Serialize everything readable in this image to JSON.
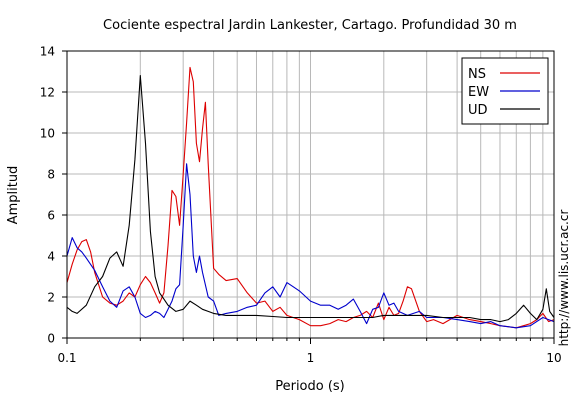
{
  "chart_data": {
    "type": "line",
    "title": "Cociente espectral Jardin Lankester, Cartago. Profundidad 30 m",
    "xlabel": "Periodo (s)",
    "ylabel": "Amplitud",
    "xscale": "log",
    "xlim": [
      0.1,
      10
    ],
    "ylim": [
      0,
      14
    ],
    "x_ticks": [
      0.1,
      1,
      10
    ],
    "x_tick_labels": [
      "0.1",
      "1",
      "10"
    ],
    "y_ticks": [
      0,
      2,
      4,
      6,
      8,
      10,
      12,
      14
    ],
    "y_tick_labels": [
      "0",
      "2",
      "4",
      "6",
      "8",
      "10",
      "12",
      "14"
    ],
    "grid": true,
    "legend_position": "top-right",
    "side_text": "http://www.lis.ucr.ac.cr",
    "series": [
      {
        "name": "NS",
        "color": "#dd0000",
        "x": [
          0.1,
          0.105,
          0.11,
          0.115,
          0.12,
          0.125,
          0.13,
          0.14,
          0.15,
          0.16,
          0.17,
          0.18,
          0.19,
          0.2,
          0.21,
          0.22,
          0.23,
          0.24,
          0.25,
          0.26,
          0.27,
          0.28,
          0.29,
          0.3,
          0.31,
          0.32,
          0.33,
          0.34,
          0.35,
          0.36,
          0.37,
          0.38,
          0.4,
          0.42,
          0.45,
          0.5,
          0.55,
          0.6,
          0.65,
          0.7,
          0.75,
          0.8,
          0.9,
          1.0,
          1.1,
          1.2,
          1.3,
          1.4,
          1.5,
          1.6,
          1.7,
          1.8,
          1.9,
          2.0,
          2.1,
          2.2,
          2.3,
          2.4,
          2.5,
          2.6,
          2.8,
          3.0,
          3.2,
          3.5,
          4.0,
          4.5,
          5.0,
          5.5,
          6.0,
          7.0,
          7.5,
          8.0,
          8.5,
          9.0,
          9.5,
          10.0
        ],
        "y": [
          2.7,
          3.6,
          4.3,
          4.7,
          4.8,
          4.2,
          3.2,
          2.0,
          1.7,
          1.6,
          1.8,
          2.2,
          2.0,
          2.6,
          3.0,
          2.7,
          2.2,
          1.7,
          2.2,
          4.5,
          7.2,
          6.9,
          5.5,
          8.0,
          10.5,
          13.2,
          12.5,
          9.5,
          8.6,
          10.2,
          11.5,
          8.5,
          3.4,
          3.1,
          2.8,
          2.9,
          2.2,
          1.7,
          1.8,
          1.3,
          1.5,
          1.1,
          0.9,
          0.6,
          0.6,
          0.7,
          0.9,
          0.8,
          1.0,
          1.1,
          1.3,
          1.0,
          1.7,
          0.9,
          1.5,
          1.1,
          1.2,
          1.8,
          2.5,
          2.4,
          1.3,
          0.8,
          0.9,
          0.7,
          1.1,
          0.9,
          0.8,
          0.7,
          0.6,
          0.5,
          0.6,
          0.7,
          0.9,
          1.2,
          0.8,
          0.9
        ]
      },
      {
        "name": "EW",
        "color": "#0000cc",
        "x": [
          0.1,
          0.105,
          0.11,
          0.115,
          0.12,
          0.13,
          0.14,
          0.15,
          0.16,
          0.17,
          0.18,
          0.19,
          0.2,
          0.21,
          0.22,
          0.23,
          0.24,
          0.25,
          0.26,
          0.27,
          0.28,
          0.29,
          0.3,
          0.31,
          0.32,
          0.33,
          0.34,
          0.35,
          0.36,
          0.38,
          0.4,
          0.42,
          0.45,
          0.5,
          0.55,
          0.6,
          0.65,
          0.7,
          0.75,
          0.8,
          0.85,
          0.9,
          1.0,
          1.1,
          1.2,
          1.3,
          1.4,
          1.5,
          1.6,
          1.7,
          1.8,
          1.9,
          2.0,
          2.1,
          2.2,
          2.3,
          2.5,
          2.8,
          3.0,
          3.5,
          4.0,
          4.5,
          5.0,
          5.5,
          6.0,
          7.0,
          8.0,
          9.0,
          9.5,
          10.0
        ],
        "y": [
          4.0,
          4.9,
          4.4,
          4.2,
          3.9,
          3.3,
          2.5,
          1.8,
          1.5,
          2.3,
          2.5,
          2.0,
          1.2,
          1.0,
          1.1,
          1.3,
          1.2,
          1.0,
          1.4,
          1.8,
          2.4,
          2.6,
          5.5,
          8.5,
          7.0,
          4.0,
          3.2,
          4.0,
          3.2,
          2.0,
          1.8,
          1.1,
          1.2,
          1.3,
          1.5,
          1.6,
          2.2,
          2.5,
          2.0,
          2.7,
          2.5,
          2.3,
          1.8,
          1.6,
          1.6,
          1.4,
          1.6,
          1.9,
          1.3,
          0.7,
          1.4,
          1.5,
          2.2,
          1.6,
          1.7,
          1.3,
          1.1,
          1.3,
          1.0,
          1.0,
          0.9,
          0.8,
          0.7,
          0.8,
          0.6,
          0.5,
          0.6,
          1.0,
          0.9,
          0.8
        ]
      },
      {
        "name": "UD",
        "color": "#000000",
        "x": [
          0.1,
          0.105,
          0.11,
          0.12,
          0.13,
          0.14,
          0.15,
          0.16,
          0.17,
          0.18,
          0.19,
          0.2,
          0.21,
          0.22,
          0.23,
          0.24,
          0.25,
          0.26,
          0.28,
          0.3,
          0.32,
          0.34,
          0.36,
          0.38,
          0.4,
          0.45,
          0.5,
          0.6,
          0.7,
          0.8,
          0.9,
          1.0,
          1.2,
          1.4,
          1.6,
          1.8,
          2.0,
          2.5,
          3.0,
          3.5,
          4.0,
          4.5,
          5.0,
          5.5,
          6.0,
          6.5,
          7.0,
          7.5,
          8.0,
          8.5,
          9.0,
          9.3,
          9.6,
          10.0
        ],
        "y": [
          1.5,
          1.3,
          1.2,
          1.6,
          2.5,
          3.0,
          3.9,
          4.2,
          3.5,
          5.5,
          8.7,
          12.8,
          9.5,
          5.2,
          3.0,
          2.2,
          1.9,
          1.6,
          1.3,
          1.4,
          1.8,
          1.6,
          1.4,
          1.3,
          1.2,
          1.1,
          1.1,
          1.1,
          1.05,
          1.0,
          1.0,
          1.0,
          1.0,
          1.0,
          1.0,
          1.0,
          1.1,
          1.1,
          1.1,
          1.0,
          1.0,
          1.0,
          0.9,
          0.9,
          0.8,
          0.9,
          1.2,
          1.6,
          1.2,
          0.9,
          1.4,
          2.4,
          1.3,
          1.0
        ]
      }
    ]
  }
}
